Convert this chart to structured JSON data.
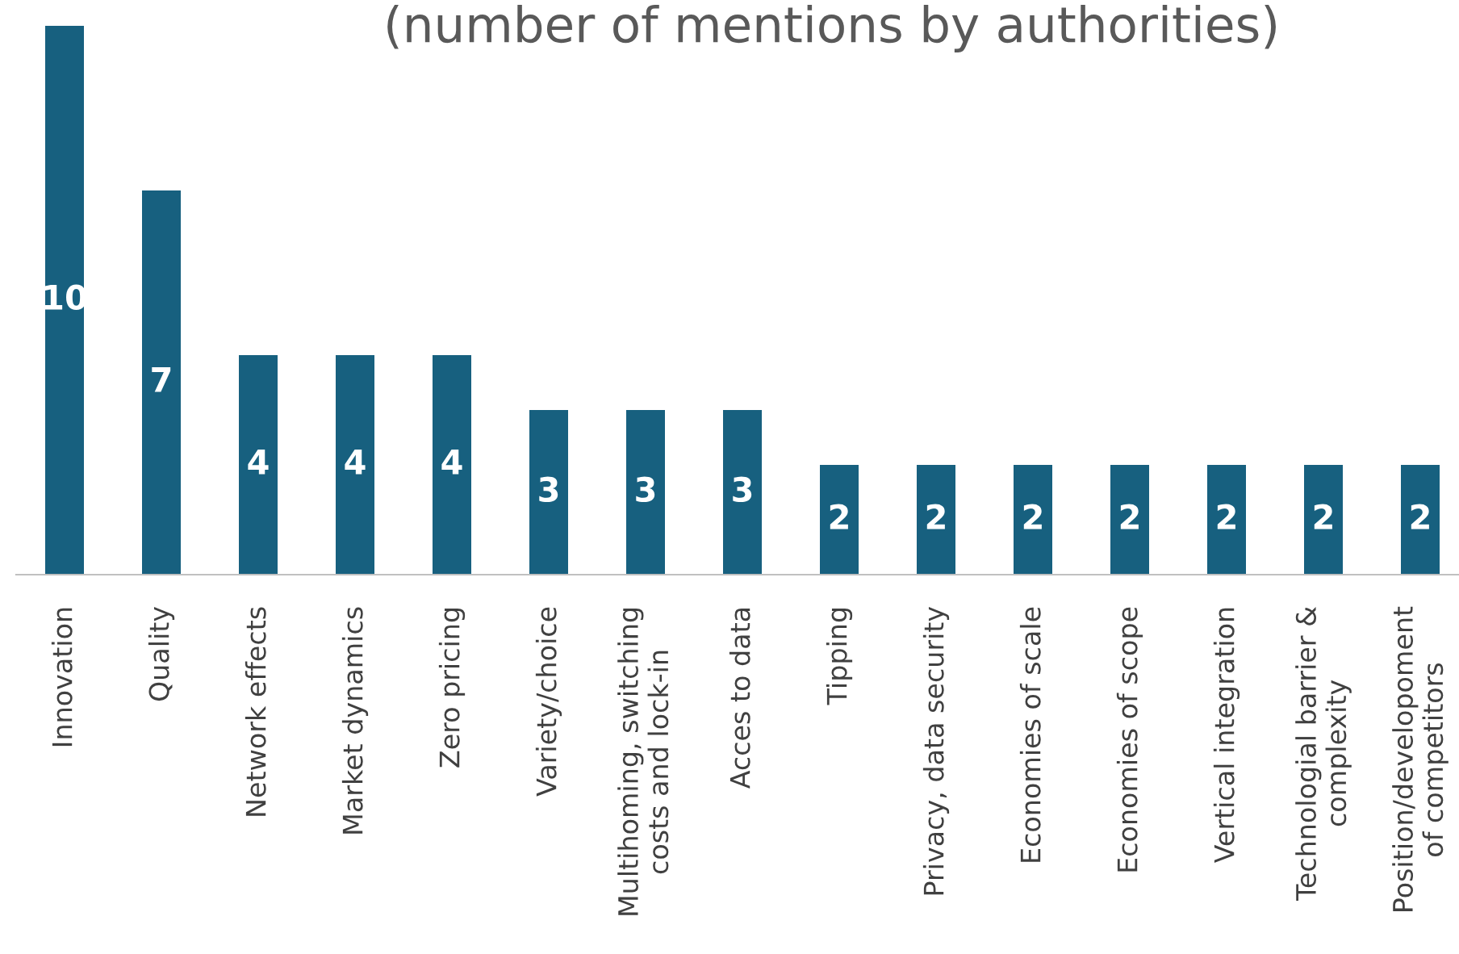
{
  "chart_data": {
    "type": "bar",
    "title": "(number of mentions by authorities)",
    "categories": [
      "Innovation",
      "Quality",
      "Network effects",
      "Market dynamics",
      "Zero pricing",
      "Variety/choice",
      "Multihoming, switching\ncosts and lock-in",
      "Acces to data",
      "Tipping",
      "Privacy, data security",
      "Economies of scale",
      "Economies of scope",
      "Vertical integration",
      "Technologial barrier &\ncomplexity",
      "Position/developoment\nof competitors"
    ],
    "values": [
      10,
      7,
      4,
      4,
      4,
      3,
      3,
      3,
      2,
      2,
      2,
      2,
      2,
      2,
      2
    ],
    "color": "#17607f",
    "data_labels": true,
    "grid": false,
    "legend": false
  }
}
